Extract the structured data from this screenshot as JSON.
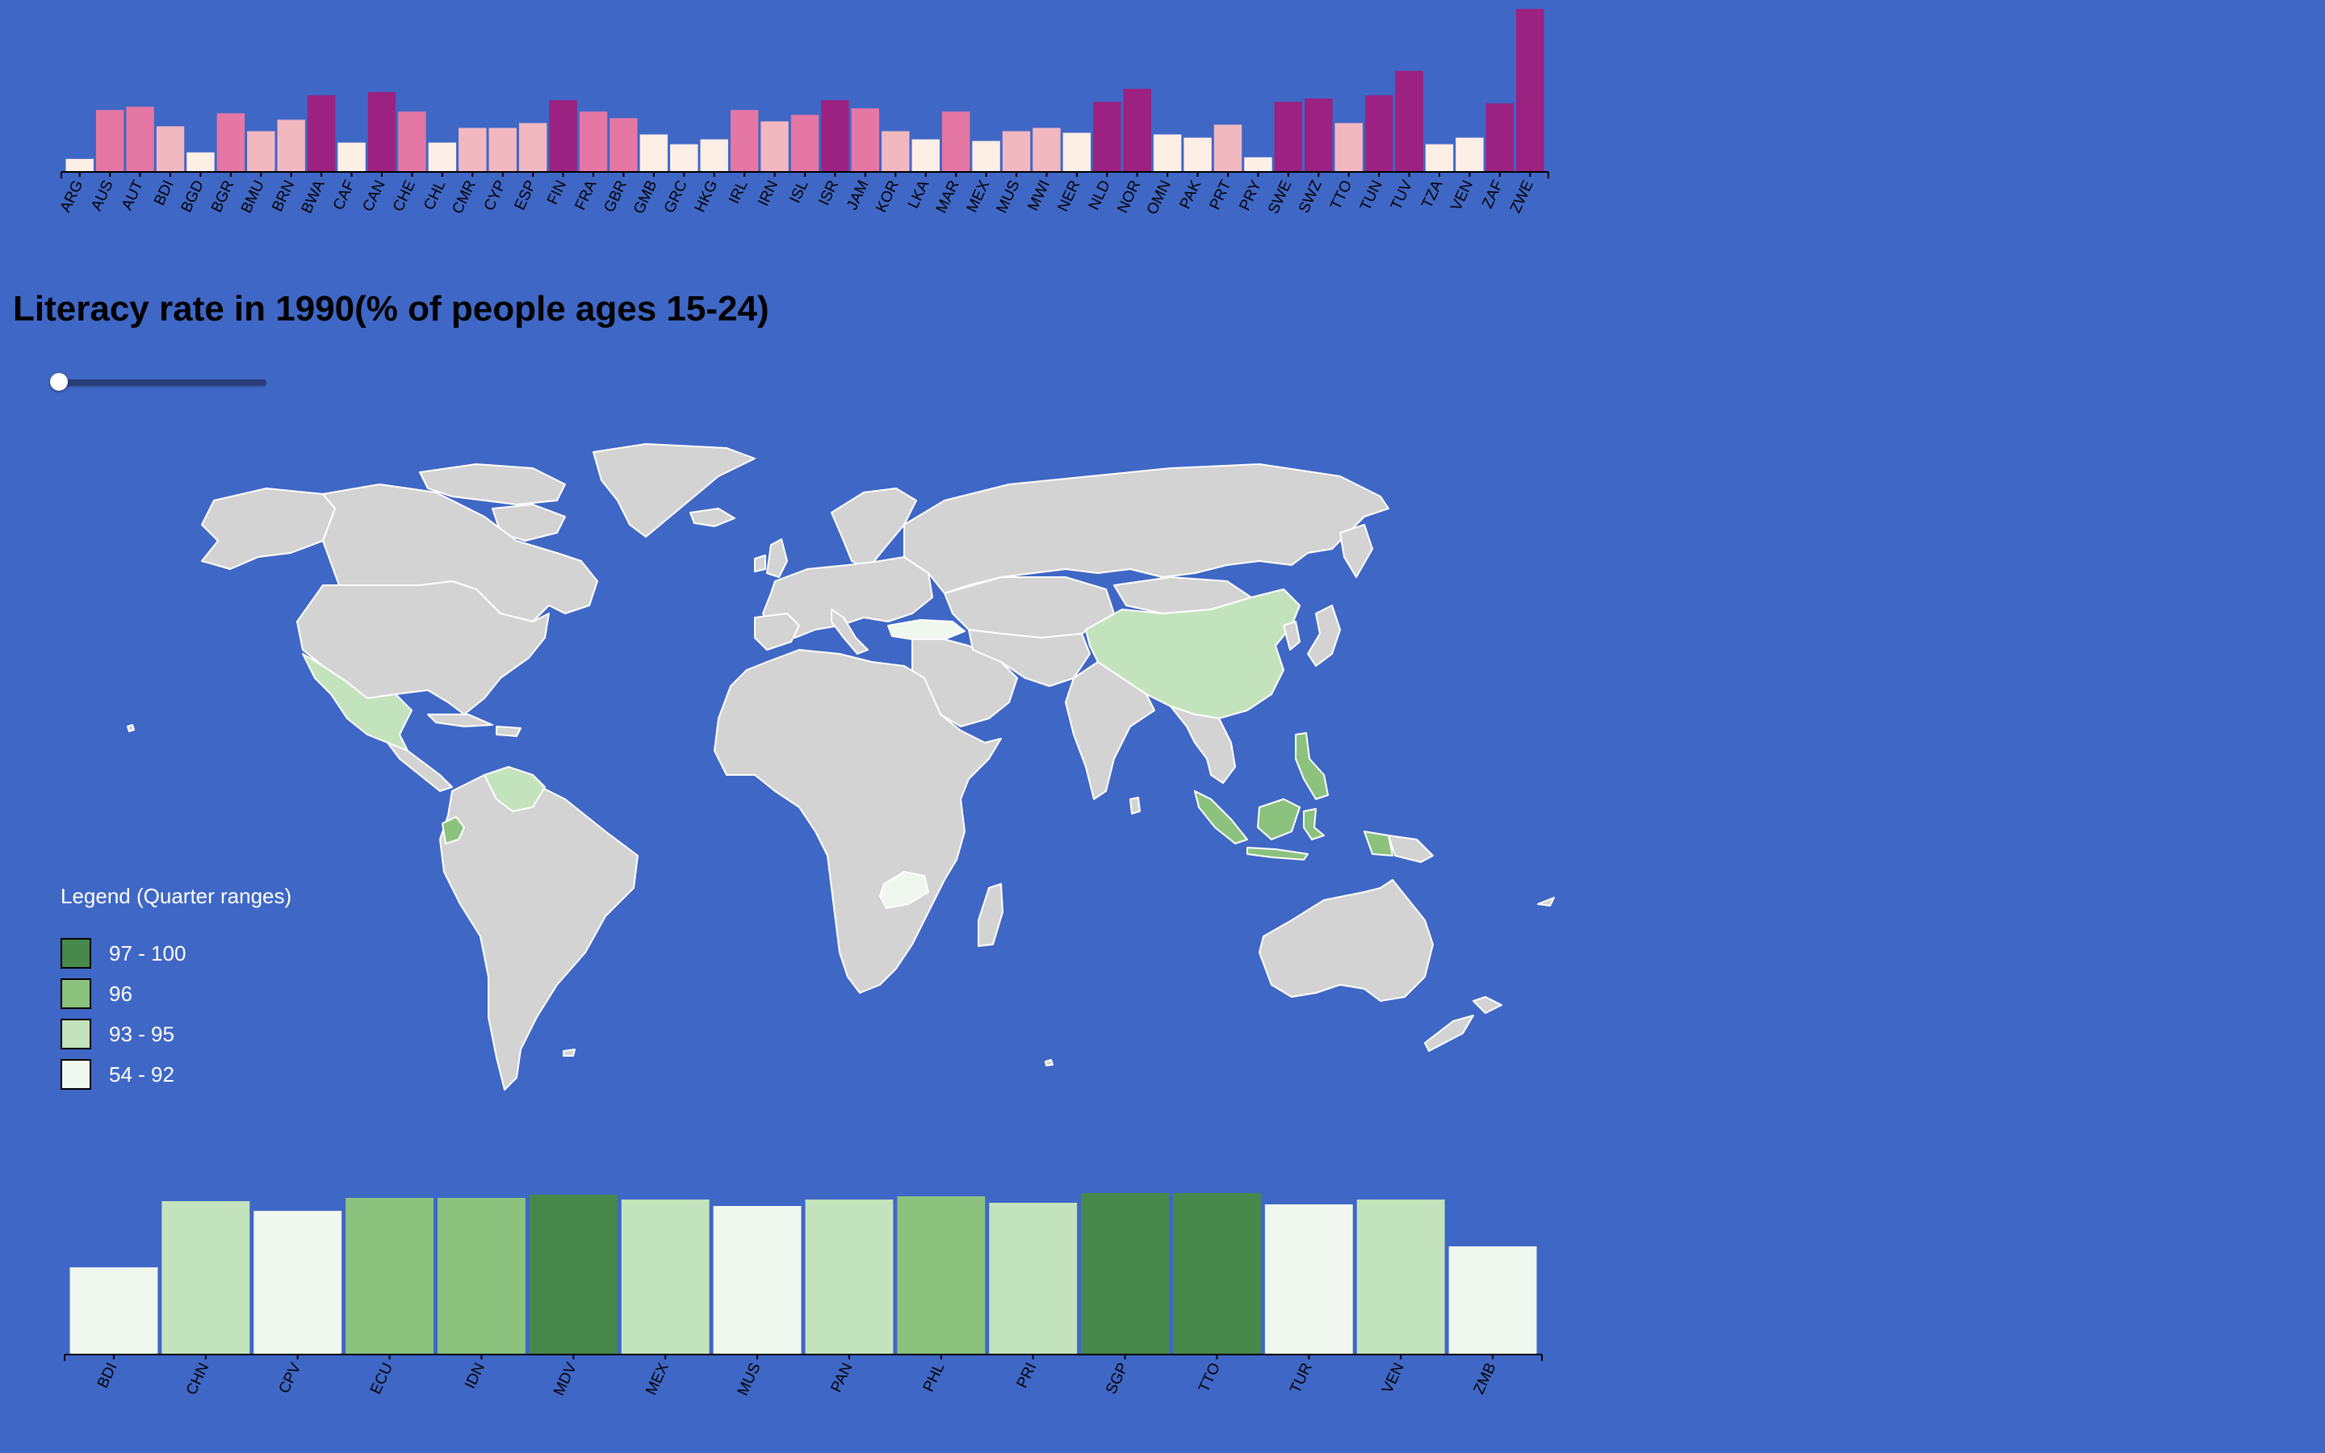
{
  "title": "Literacy rate in 1990(% of people ages 15-24)",
  "colors": {
    "background": "#3f67c5",
    "land": "#d3d3d3",
    "border": "#ffffff"
  },
  "slider": {
    "value_fraction": 0.0
  },
  "legend": {
    "title": "Legend (Quarter ranges)",
    "items": [
      {
        "label": "97 - 100",
        "color": "#47884b"
      },
      {
        "label": "96",
        "color": "#8bc27e"
      },
      {
        "label": "93 - 95",
        "color": "#c3e3bc"
      },
      {
        "label": "54 - 92",
        "color": "#f0f7ee"
      }
    ]
  },
  "chart_data": [
    {
      "type": "bar",
      "categories": [
        "ARG",
        "AUS",
        "AUT",
        "BDI",
        "BGD",
        "BGR",
        "BMU",
        "BRN",
        "BWA",
        "CAF",
        "CAN",
        "CHE",
        "CHL",
        "CMR",
        "CYP",
        "ESP",
        "FIN",
        "FRA",
        "GBR",
        "GMB",
        "GRC",
        "HKG",
        "IRL",
        "IRN",
        "ISL",
        "ISR",
        "JAM",
        "KOR",
        "LKA",
        "MAR",
        "MEX",
        "MUS",
        "MWI",
        "NER",
        "NLD",
        "NOR",
        "OMN",
        "PAK",
        "PRT",
        "PRY",
        "SWE",
        "SWZ",
        "TTO",
        "TUN",
        "TUV",
        "TZA",
        "VEN",
        "ZAF",
        "ZWE"
      ],
      "values": [
        8,
        38,
        40,
        28,
        12,
        36,
        25,
        32,
        47,
        18,
        49,
        37,
        18,
        27,
        27,
        30,
        44,
        37,
        33,
        23,
        17,
        20,
        38,
        31,
        35,
        44,
        39,
        25,
        20,
        37,
        19,
        25,
        27,
        24,
        43,
        51,
        23,
        21,
        29,
        9,
        43,
        45,
        30,
        47,
        62,
        17,
        21,
        42,
        100
      ],
      "colors": [
        "#fdeee6",
        "#e477a4",
        "#e477a4",
        "#f2b8c0",
        "#fdeee6",
        "#e477a4",
        "#f2b8c0",
        "#f2b8c0",
        "#9b2280",
        "#fdeee6",
        "#9b2280",
        "#e477a4",
        "#fdeee6",
        "#f2b8c0",
        "#f2b8c0",
        "#f2b8c0",
        "#9b2280",
        "#e477a4",
        "#e477a4",
        "#fdeee6",
        "#fdeee6",
        "#fdeee6",
        "#e477a4",
        "#f2b8c0",
        "#e477a4",
        "#9b2280",
        "#e477a4",
        "#f2b8c0",
        "#fdeee6",
        "#e477a4",
        "#fdeee6",
        "#f2b8c0",
        "#f2b8c0",
        "#fdeee6",
        "#9b2280",
        "#9b2280",
        "#fdeee6",
        "#fdeee6",
        "#f2b8c0",
        "#fdeee6",
        "#9b2280",
        "#9b2280",
        "#f2b8c0",
        "#9b2280",
        "#9b2280",
        "#fdeee6",
        "#fdeee6",
        "#9b2280",
        "#9b2280"
      ]
    },
    {
      "type": "bar",
      "categories": [
        "BDI",
        "CHN",
        "CPV",
        "ECU",
        "IDN",
        "MDV",
        "MEX",
        "MUS",
        "PAN",
        "PHL",
        "PRI",
        "SGP",
        "TTO",
        "TUR",
        "VEN",
        "ZMB"
      ],
      "values": [
        54,
        95,
        89,
        97,
        97,
        99,
        96,
        92,
        96,
        98,
        94,
        100,
        100,
        93,
        96,
        67
      ],
      "colors": [
        "#f0f7ee",
        "#c3e3bc",
        "#f0f7ee",
        "#8bc27e",
        "#8bc27e",
        "#47884b",
        "#c3e3bc",
        "#f0f7ee",
        "#c3e3bc",
        "#8bc27e",
        "#c3e3bc",
        "#47884b",
        "#47884b",
        "#f0f7ee",
        "#c3e3bc",
        "#f0f7ee"
      ]
    }
  ]
}
